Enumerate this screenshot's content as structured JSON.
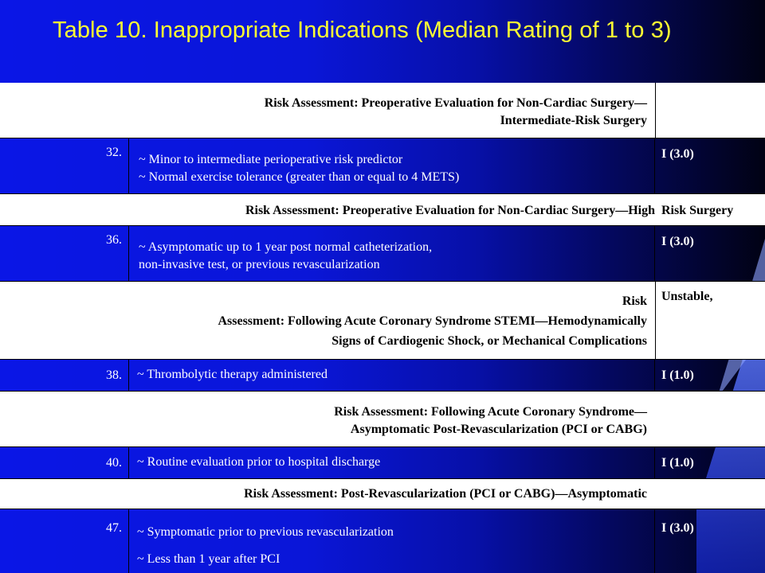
{
  "title": "Table 10. Inappropriate Indications (Median Rating of 1 to 3)",
  "sections": [
    {
      "header_lines": [
        "Risk Assessment:  Preoperative Evaluation for Non-Cardiac Surgery—",
        "Intermediate-Risk  Surgery"
      ],
      "header_side": "",
      "number": "32.",
      "items": [
        "~ Minor to intermediate perioperative risk predictor",
        "~ Normal exercise tolerance (greater than or equal to 4 METS)"
      ],
      "rating": "I (3.0)"
    },
    {
      "header_lines": [
        "Risk Assessment:  Preoperative Evaluation for Non-Cardiac Surgery—High"
      ],
      "header_side": "Risk Surgery",
      "number": "36.",
      "items": [
        "~ Asymptomatic up to 1 year post normal catheterization,",
        "non-invasive test, or previous revascularization"
      ],
      "rating": "I (3.0)"
    },
    {
      "header_lines": [
        "Risk",
        "Assessment:  Following Acute Coronary Syndrome STEMI—Hemodynamically",
        "Signs of Cardiogenic Shock, or Mechanical Complications"
      ],
      "header_side": "Unstable,",
      "number": "38.",
      "items": [
        "~ Thrombolytic therapy administered"
      ],
      "rating": "I (1.0)"
    },
    {
      "header_lines": [
        "Risk Assessment:  Following Acute Coronary Syndrome—",
        "Asymptomatic Post-Revascularization  (PCI or CABG)"
      ],
      "header_side": "",
      "number": "40.",
      "items": [
        "~ Routine evaluation prior to hospital discharge"
      ],
      "rating": "I (1.0)"
    },
    {
      "header_lines": [
        "Risk Assessment:  Post-Revascularization (PCI or CABG)—Asymptomatic"
      ],
      "header_side": "",
      "number": "47.",
      "items": [
        "~ Symptomatic prior to previous revascularization",
        "~ Less than 1 year after PCI"
      ],
      "rating": "I (3.0)"
    }
  ]
}
